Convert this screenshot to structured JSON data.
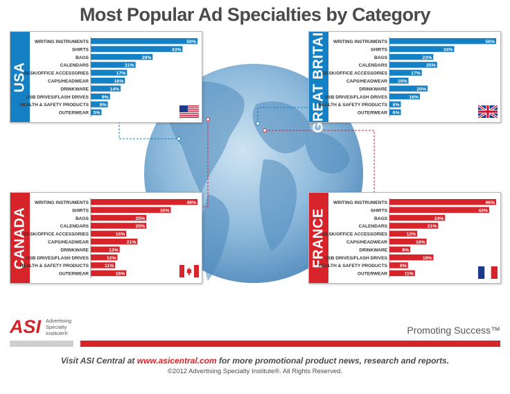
{
  "title": "Most Popular Ad Specialties by Category",
  "colors": {
    "blue": "#1580c4",
    "red": "#d7232a",
    "globe": "#6ea4cf"
  },
  "chart_data": [
    {
      "type": "bar",
      "country": "USA",
      "color": "#1580c4",
      "flag": "us-flag",
      "categories": [
        "WRITING INSTRUMENTS",
        "SHIRTS",
        "BAGS",
        "CALENDARS",
        "DESK/OFFICE ACCESSORIES",
        "CAPS/HEADWEAR",
        "DRINKWARE",
        "USB DRIVES/FLASH DRIVES",
        "HEALTH & SAFETY PRODUCTS",
        "OUTERWEAR"
      ],
      "values": [
        50,
        43,
        29,
        21,
        17,
        16,
        14,
        9,
        8,
        5
      ],
      "labels": [
        "50%",
        "43%",
        "29%",
        "21%",
        "17%",
        "16%",
        "14%",
        "9%",
        "8%",
        "5%"
      ],
      "ylim": [
        0,
        50
      ]
    },
    {
      "type": "bar",
      "country": "GREAT BRITAIN",
      "color": "#1580c4",
      "flag": "uk-flag",
      "categories": [
        "WRITING INSTRUMENTS",
        "SHIRTS",
        "BAGS",
        "CALENDARS",
        "DESK/OFFICE ACCESSORIES",
        "CAPS/HEADWEAR",
        "DRINKWARE",
        "USB DRIVES/FLASH DRIVES",
        "HEALTH & SAFETY PRODUCTS",
        "OUTERWEAR"
      ],
      "values": [
        56,
        34,
        23,
        25,
        17,
        10,
        20,
        16,
        6,
        6
      ],
      "labels": [
        "56%",
        "34%",
        "23%",
        "25%",
        "17%",
        "10%",
        "20%",
        "16%",
        "6%",
        "6%"
      ],
      "ylim": [
        0,
        56
      ]
    },
    {
      "type": "bar",
      "country": "CANADA",
      "color": "#d7232a",
      "flag": "canada-flag",
      "categories": [
        "WRITING INSTRUMENTS",
        "SHIRTS",
        "BAGS",
        "CALENDARS",
        "DESK/OFFICE ACCESSORIES",
        "CAPS/HEADWEAR",
        "DRINKWARE",
        "USB DRIVES/FLASH DRIVES",
        "HEALTH & SAFETY PRODUCTS",
        "OUTERWEAR"
      ],
      "values": [
        48,
        36,
        25,
        25,
        16,
        21,
        13,
        12,
        11,
        16
      ],
      "labels": [
        "48%",
        "36%",
        "25%",
        "25%",
        "16%",
        "21%",
        "13%",
        "12%",
        "11%",
        "16%"
      ],
      "ylim": [
        0,
        48
      ]
    },
    {
      "type": "bar",
      "country": "FRANCE",
      "color": "#d7232a",
      "flag": "france-flag",
      "categories": [
        "WRITING INSTRUMENTS",
        "SHIRTS",
        "BAGS",
        "CALENDARS",
        "DESK/OFFICE ACCESSORIES",
        "CAPS/HEADWEAR",
        "DRINKWARE",
        "USB DRIVES/FLASH DRIVES",
        "HEALTH & SAFETY PRODUCTS",
        "OUTERWEAR"
      ],
      "values": [
        46,
        43,
        24,
        21,
        12,
        16,
        9,
        19,
        8,
        11
      ],
      "labels": [
        "46%",
        "43%",
        "24%",
        "21%",
        "12%",
        "16%",
        "9%",
        "19%",
        "8%",
        "11%"
      ],
      "ylim": [
        0,
        46
      ]
    }
  ],
  "footer": {
    "logo_text": "ASI",
    "logo_subtitle": [
      "Advertising",
      "Specialty",
      "Institute®"
    ],
    "tagline": "Promoting Success™",
    "visit_prefix": "Visit ASI Central at ",
    "visit_url": "www.asicentral.com",
    "visit_suffix": " for more promotional product news, research and reports.",
    "copyright": "©2012 Advertising Specialty Institute®.  All Rights Reserved."
  }
}
